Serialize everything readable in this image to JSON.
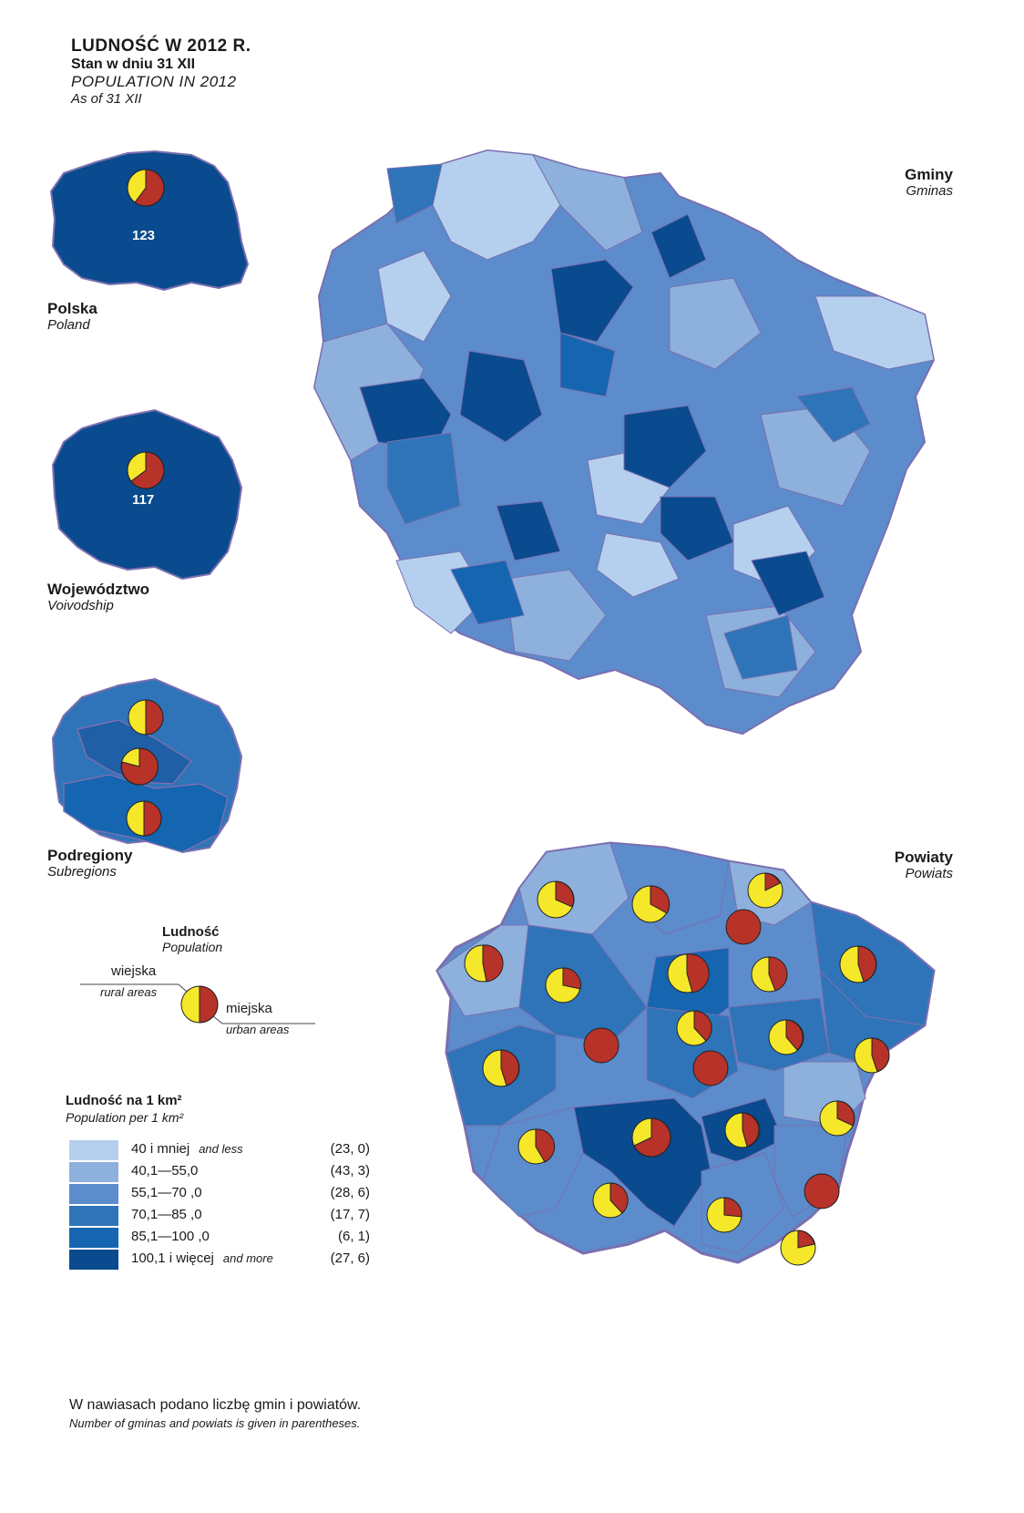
{
  "title": {
    "main": "LUDNOŚĆ  W  2012 R.",
    "sub": "Stan w dniu 31 XII",
    "en_main": "POPULATION  IN  2012",
    "en_sub": "As of 31 XII"
  },
  "panels": {
    "poland": {
      "label": "Polska",
      "label_en": "Poland",
      "value": "123"
    },
    "voivodship": {
      "label": "Województwo",
      "label_en": "Voivodship",
      "value": "117"
    },
    "subregions": {
      "label": "Podregiony",
      "label_en": "Subregions"
    },
    "gminas": {
      "label": "Gminy",
      "label_en": "Gminas"
    },
    "powiats": {
      "label": "Powiaty",
      "label_en": "Powiats"
    }
  },
  "pie_legend": {
    "title": "Ludność",
    "title_en": "Population",
    "rural": "wiejska",
    "rural_en": "rural areas",
    "urban": "miejska",
    "urban_en": "urban areas"
  },
  "density_legend": {
    "title": "Ludność na 1 km²",
    "title_en": "Population per 1 km²",
    "classes": [
      {
        "label": "40 i mniej",
        "label_en": "and less",
        "count": "(23, 0)",
        "color": "#b5d0ee"
      },
      {
        "label": "40,1—55,0",
        "label_en": "",
        "count": "(43, 3)",
        "color": "#8eb0dc"
      },
      {
        "label": "55,1—70 ,0",
        "label_en": "",
        "count": "(28, 6)",
        "color": "#5c8ccb"
      },
      {
        "label": "70,1—85 ,0",
        "label_en": "",
        "count": "(17, 7)",
        "color": "#2f74b8"
      },
      {
        "label": "85,1—100 ,0",
        "label_en": "",
        "count": "(6, 1)",
        "color": "#1565b0"
      },
      {
        "label": "100,1 i więcej",
        "label_en": "and more",
        "count": "(27, 6)",
        "color": "#0a4a8e"
      }
    ]
  },
  "colors": {
    "rural": "#f5e82a",
    "urban": "#b73228",
    "border": "#7a6fb0"
  },
  "notes": {
    "pl": "W nawiasach podano liczbę gmin i powiatów.",
    "en": "Number of gminas and powiats is given in parentheses."
  }
}
